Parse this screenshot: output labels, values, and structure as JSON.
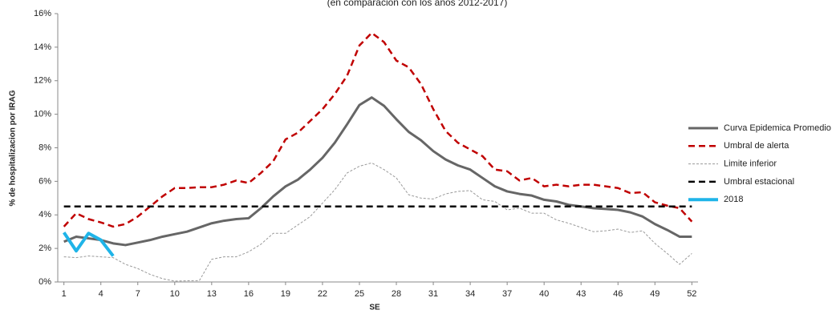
{
  "chart_data": {
    "type": "line",
    "subtitle": "(en comparación con los años 2012-2017)",
    "xlabel": "SE",
    "ylabel": "% de hospitalizacion por IRAG",
    "x": [
      1,
      2,
      3,
      4,
      5,
      6,
      7,
      8,
      9,
      10,
      11,
      12,
      13,
      14,
      15,
      16,
      17,
      18,
      19,
      20,
      21,
      22,
      23,
      24,
      25,
      26,
      27,
      28,
      29,
      30,
      31,
      32,
      33,
      34,
      35,
      36,
      37,
      38,
      39,
      40,
      41,
      42,
      43,
      44,
      45,
      46,
      47,
      48,
      49,
      50,
      51,
      52
    ],
    "xlim": [
      0.5,
      52.5
    ],
    "xticks": [
      1,
      4,
      7,
      10,
      13,
      16,
      19,
      22,
      25,
      28,
      31,
      34,
      37,
      40,
      43,
      46,
      49,
      52
    ],
    "ylim": [
      0,
      16
    ],
    "yticks": [
      {
        "value": 0,
        "label": "0%"
      },
      {
        "value": 2,
        "label": "2%"
      },
      {
        "value": 4,
        "label": "4%"
      },
      {
        "value": 6,
        "label": "6%"
      },
      {
        "value": 8,
        "label": "8%"
      },
      {
        "value": 10,
        "label": "10%"
      },
      {
        "value": 12,
        "label": "12%"
      },
      {
        "value": 14,
        "label": "14%"
      },
      {
        "value": 16,
        "label": "16%"
      }
    ],
    "legend": "right",
    "series": [
      {
        "name": "Curva Epidemica Promedio",
        "color": "#666666",
        "style": "solid",
        "width": 3,
        "values": [
          2.4,
          2.7,
          2.6,
          2.5,
          2.3,
          2.2,
          2.35,
          2.5,
          2.7,
          2.85,
          3.0,
          3.25,
          3.5,
          3.65,
          3.75,
          3.8,
          4.4,
          5.1,
          5.7,
          6.1,
          6.7,
          7.4,
          8.3,
          9.4,
          10.55,
          11.0,
          10.5,
          9.7,
          8.95,
          8.45,
          7.8,
          7.3,
          6.95,
          6.7,
          6.2,
          5.7,
          5.4,
          5.25,
          5.15,
          4.9,
          4.8,
          4.6,
          4.5,
          4.4,
          4.35,
          4.3,
          4.15,
          3.9,
          3.45,
          3.1,
          2.7,
          2.7
        ]
      },
      {
        "name": "Umbral de alerta",
        "color": "#c00000",
        "style": "dashed",
        "width": 2.5,
        "values": [
          3.3,
          4.1,
          3.75,
          3.55,
          3.3,
          3.45,
          3.9,
          4.5,
          5.1,
          5.6,
          5.6,
          5.65,
          5.65,
          5.8,
          6.05,
          5.9,
          6.5,
          7.2,
          8.5,
          8.9,
          9.6,
          10.3,
          11.2,
          12.3,
          14.1,
          14.85,
          14.3,
          13.2,
          12.8,
          11.8,
          10.3,
          9.0,
          8.3,
          7.9,
          7.5,
          6.7,
          6.6,
          6.05,
          6.2,
          5.7,
          5.8,
          5.7,
          5.8,
          5.8,
          5.7,
          5.6,
          5.3,
          5.35,
          4.75,
          4.55,
          4.4,
          3.6
        ]
      },
      {
        "name": "Limite inferior",
        "color": "#999999",
        "style": "dotted",
        "width": 1,
        "values": [
          1.5,
          1.45,
          1.55,
          1.5,
          1.45,
          1.05,
          0.8,
          0.45,
          0.2,
          0.05,
          0.07,
          0.08,
          1.35,
          1.5,
          1.5,
          1.8,
          2.25,
          2.9,
          2.9,
          3.4,
          3.9,
          4.7,
          5.5,
          6.5,
          6.9,
          7.1,
          6.7,
          6.2,
          5.2,
          5.0,
          4.95,
          5.25,
          5.4,
          5.45,
          4.9,
          4.8,
          4.3,
          4.4,
          4.1,
          4.1,
          3.7,
          3.5,
          3.25,
          3.0,
          3.05,
          3.15,
          2.95,
          3.05,
          2.3,
          1.7,
          1.05,
          1.7
        ]
      },
      {
        "name": "Umbral estacional",
        "color": "#000000",
        "style": "dashed",
        "width": 2.5,
        "values": [
          4.5,
          4.5,
          4.5,
          4.5,
          4.5,
          4.5,
          4.5,
          4.5,
          4.5,
          4.5,
          4.5,
          4.5,
          4.5,
          4.5,
          4.5,
          4.5,
          4.5,
          4.5,
          4.5,
          4.5,
          4.5,
          4.5,
          4.5,
          4.5,
          4.5,
          4.5,
          4.5,
          4.5,
          4.5,
          4.5,
          4.5,
          4.5,
          4.5,
          4.5,
          4.5,
          4.5,
          4.5,
          4.5,
          4.5,
          4.5,
          4.5,
          4.5,
          4.5,
          4.5,
          4.5,
          4.5,
          4.5,
          4.5,
          4.5,
          4.5,
          4.5,
          4.5
        ]
      },
      {
        "name": "2018",
        "color": "#1fb4e8",
        "style": "solid",
        "width": 4,
        "values": [
          2.95,
          1.85,
          2.9,
          2.5,
          1.55,
          null,
          null,
          null,
          null,
          null,
          null,
          null,
          null,
          null,
          null,
          null,
          null,
          null,
          null,
          null,
          null,
          null,
          null,
          null,
          null,
          null,
          null,
          null,
          null,
          null,
          null,
          null,
          null,
          null,
          null,
          null,
          null,
          null,
          null,
          null,
          null,
          null,
          null,
          null,
          null,
          null,
          null,
          null,
          null,
          null,
          null,
          null
        ]
      }
    ]
  }
}
